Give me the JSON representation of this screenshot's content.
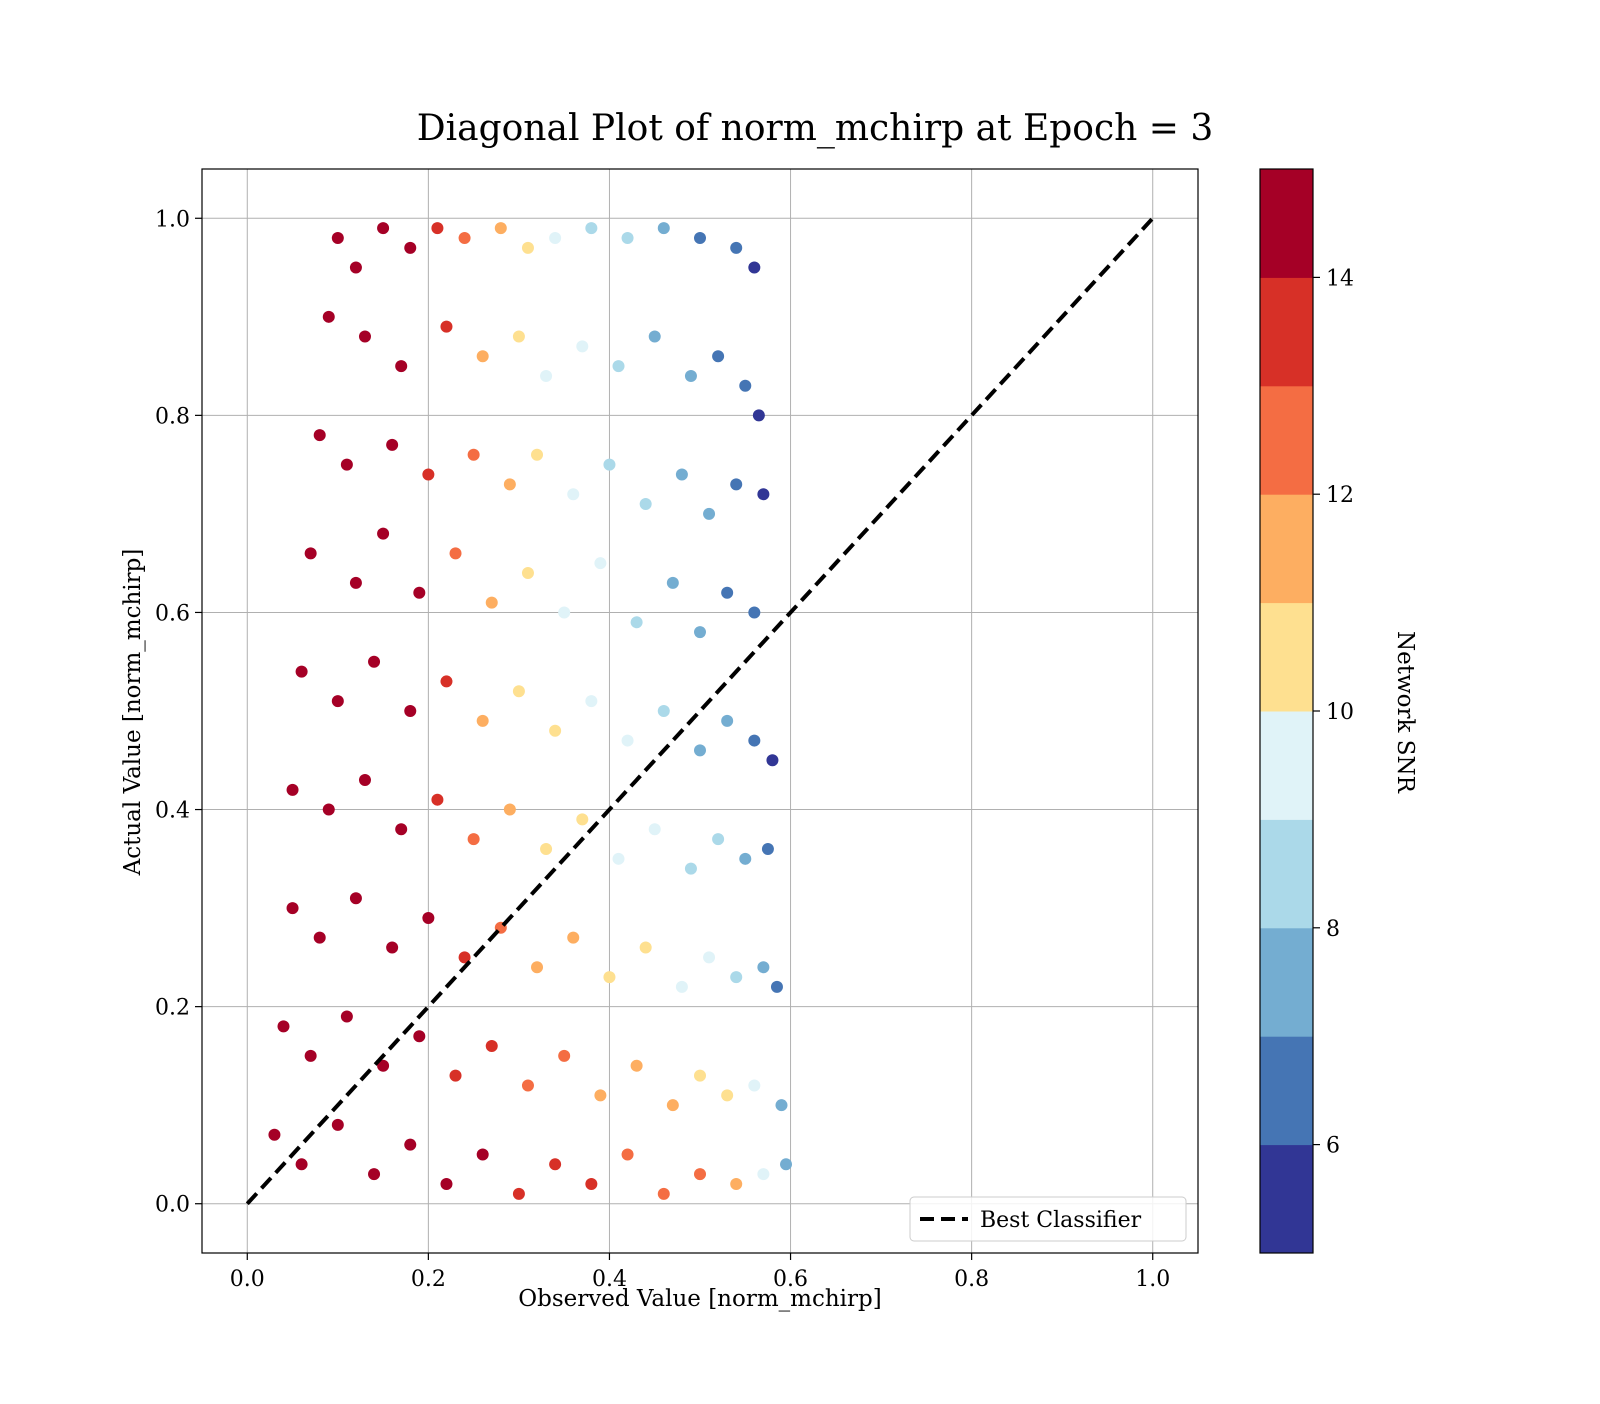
{
  "chart_data": {
    "type": "scatter",
    "title": "Diagonal Plot of norm_mchirp at Epoch = 3",
    "xlabel": "Observed Value [norm_mchirp]",
    "ylabel": "Actual Value [norm_mchirp]",
    "xlim": [
      -0.05,
      1.05
    ],
    "ylim": [
      -0.05,
      1.05
    ],
    "x_ticks": [
      0.0,
      0.2,
      0.4,
      0.6,
      0.8,
      1.0
    ],
    "y_ticks": [
      0.0,
      0.2,
      0.4,
      0.6,
      0.8,
      1.0
    ],
    "x_tick_labels": [
      "0.0",
      "0.2",
      "0.4",
      "0.6",
      "0.8",
      "1.0"
    ],
    "y_tick_labels": [
      "0.0",
      "0.2",
      "0.4",
      "0.6",
      "0.8",
      "1.0"
    ],
    "grid": true,
    "legend": {
      "placement": "lower-right",
      "entries": [
        "Best Classifier"
      ]
    },
    "diagonal_line": {
      "name": "Best Classifier",
      "x": [
        0.0,
        1.0
      ],
      "y": [
        0.0,
        1.0
      ],
      "style": "dashed",
      "color": "#000000"
    },
    "colorbar": {
      "label": "Network SNR",
      "range": [
        5,
        15
      ],
      "ticks": [
        6,
        8,
        10,
        12,
        14
      ],
      "tick_labels": [
        "6",
        "8",
        "10",
        "12",
        "14"
      ],
      "colors": [
        "#313695",
        "#4575b4",
        "#74add1",
        "#abd9e9",
        "#e0f3f8",
        "#fee090",
        "#fdae61",
        "#f46d43",
        "#d73027",
        "#a50026"
      ]
    },
    "series": [
      {
        "name": "",
        "description_points": "scatter points (observed, actual, snr) sampled from image",
        "points": [
          [
            0.1,
            0.98,
            14.8
          ],
          [
            0.12,
            0.95,
            14.9
          ],
          [
            0.15,
            0.99,
            14.7
          ],
          [
            0.18,
            0.97,
            14.6
          ],
          [
            0.21,
            0.99,
            13.5
          ],
          [
            0.24,
            0.98,
            12.0
          ],
          [
            0.28,
            0.99,
            11.0
          ],
          [
            0.31,
            0.97,
            10.2
          ],
          [
            0.34,
            0.98,
            9.4
          ],
          [
            0.38,
            0.99,
            8.6
          ],
          [
            0.42,
            0.98,
            8.0
          ],
          [
            0.46,
            0.99,
            7.5
          ],
          [
            0.5,
            0.98,
            6.8
          ],
          [
            0.54,
            0.97,
            6.5
          ],
          [
            0.56,
            0.95,
            5.8
          ],
          [
            0.09,
            0.9,
            14.9
          ],
          [
            0.13,
            0.88,
            15.0
          ],
          [
            0.17,
            0.85,
            14.4
          ],
          [
            0.22,
            0.89,
            13.2
          ],
          [
            0.26,
            0.86,
            11.8
          ],
          [
            0.3,
            0.88,
            10.8
          ],
          [
            0.33,
            0.84,
            9.6
          ],
          [
            0.37,
            0.87,
            9.0
          ],
          [
            0.41,
            0.85,
            8.4
          ],
          [
            0.45,
            0.88,
            7.8
          ],
          [
            0.49,
            0.84,
            7.2
          ],
          [
            0.52,
            0.86,
            6.6
          ],
          [
            0.55,
            0.83,
            6.2
          ],
          [
            0.565,
            0.8,
            5.6
          ],
          [
            0.08,
            0.78,
            14.8
          ],
          [
            0.11,
            0.75,
            15.0
          ],
          [
            0.16,
            0.77,
            14.6
          ],
          [
            0.2,
            0.74,
            13.8
          ],
          [
            0.25,
            0.76,
            12.2
          ],
          [
            0.29,
            0.73,
            11.0
          ],
          [
            0.32,
            0.76,
            10.0
          ],
          [
            0.36,
            0.72,
            9.2
          ],
          [
            0.4,
            0.75,
            8.8
          ],
          [
            0.44,
            0.71,
            8.1
          ],
          [
            0.48,
            0.74,
            7.6
          ],
          [
            0.51,
            0.7,
            7.0
          ],
          [
            0.54,
            0.73,
            6.4
          ],
          [
            0.57,
            0.72,
            5.9
          ],
          [
            0.07,
            0.66,
            14.9
          ],
          [
            0.12,
            0.63,
            15.0
          ],
          [
            0.15,
            0.68,
            14.7
          ],
          [
            0.19,
            0.62,
            14.0
          ],
          [
            0.23,
            0.66,
            12.8
          ],
          [
            0.27,
            0.61,
            11.5
          ],
          [
            0.31,
            0.64,
            10.5
          ],
          [
            0.35,
            0.6,
            9.8
          ],
          [
            0.39,
            0.65,
            9.0
          ],
          [
            0.43,
            0.59,
            8.5
          ],
          [
            0.47,
            0.63,
            7.9
          ],
          [
            0.5,
            0.58,
            7.3
          ],
          [
            0.53,
            0.62,
            6.9
          ],
          [
            0.56,
            0.6,
            6.0
          ],
          [
            0.06,
            0.54,
            14.8
          ],
          [
            0.1,
            0.51,
            15.0
          ],
          [
            0.14,
            0.55,
            14.9
          ],
          [
            0.18,
            0.5,
            14.2
          ],
          [
            0.22,
            0.53,
            13.0
          ],
          [
            0.26,
            0.49,
            11.9
          ],
          [
            0.3,
            0.52,
            10.9
          ],
          [
            0.34,
            0.48,
            10.1
          ],
          [
            0.38,
            0.51,
            9.5
          ],
          [
            0.42,
            0.47,
            9.0
          ],
          [
            0.46,
            0.5,
            8.4
          ],
          [
            0.5,
            0.46,
            7.9
          ],
          [
            0.53,
            0.49,
            7.2
          ],
          [
            0.56,
            0.47,
            6.3
          ],
          [
            0.58,
            0.45,
            5.7
          ],
          [
            0.05,
            0.42,
            14.7
          ],
          [
            0.09,
            0.4,
            15.0
          ],
          [
            0.13,
            0.43,
            14.9
          ],
          [
            0.17,
            0.38,
            14.5
          ],
          [
            0.21,
            0.41,
            13.4
          ],
          [
            0.25,
            0.37,
            12.4
          ],
          [
            0.29,
            0.4,
            11.5
          ],
          [
            0.33,
            0.36,
            10.8
          ],
          [
            0.37,
            0.39,
            10.0
          ],
          [
            0.41,
            0.35,
            9.6
          ],
          [
            0.45,
            0.38,
            9.1
          ],
          [
            0.49,
            0.34,
            8.8
          ],
          [
            0.52,
            0.37,
            8.2
          ],
          [
            0.55,
            0.35,
            7.4
          ],
          [
            0.575,
            0.36,
            6.2
          ],
          [
            0.05,
            0.3,
            14.8
          ],
          [
            0.08,
            0.27,
            15.0
          ],
          [
            0.12,
            0.31,
            14.9
          ],
          [
            0.16,
            0.26,
            14.8
          ],
          [
            0.2,
            0.29,
            14.0
          ],
          [
            0.24,
            0.25,
            13.0
          ],
          [
            0.28,
            0.28,
            12.3
          ],
          [
            0.32,
            0.24,
            11.7
          ],
          [
            0.36,
            0.27,
            11.0
          ],
          [
            0.4,
            0.23,
            10.6
          ],
          [
            0.44,
            0.26,
            10.1
          ],
          [
            0.48,
            0.22,
            9.8
          ],
          [
            0.51,
            0.25,
            9.2
          ],
          [
            0.54,
            0.23,
            8.5
          ],
          [
            0.57,
            0.24,
            7.4
          ],
          [
            0.585,
            0.22,
            6.0
          ],
          [
            0.04,
            0.18,
            14.7
          ],
          [
            0.07,
            0.15,
            15.0
          ],
          [
            0.11,
            0.19,
            15.0
          ],
          [
            0.15,
            0.14,
            14.9
          ],
          [
            0.19,
            0.17,
            14.5
          ],
          [
            0.23,
            0.13,
            13.8
          ],
          [
            0.27,
            0.16,
            13.2
          ],
          [
            0.31,
            0.12,
            12.7
          ],
          [
            0.35,
            0.15,
            12.1
          ],
          [
            0.39,
            0.11,
            11.8
          ],
          [
            0.43,
            0.14,
            11.4
          ],
          [
            0.47,
            0.1,
            11.0
          ],
          [
            0.5,
            0.13,
            10.6
          ],
          [
            0.53,
            0.11,
            10.1
          ],
          [
            0.56,
            0.12,
            9.0
          ],
          [
            0.59,
            0.1,
            7.0
          ],
          [
            0.03,
            0.07,
            14.6
          ],
          [
            0.06,
            0.04,
            15.0
          ],
          [
            0.1,
            0.08,
            15.0
          ],
          [
            0.14,
            0.03,
            15.0
          ],
          [
            0.18,
            0.06,
            14.9
          ],
          [
            0.22,
            0.02,
            14.7
          ],
          [
            0.26,
            0.05,
            14.3
          ],
          [
            0.3,
            0.01,
            13.9
          ],
          [
            0.34,
            0.04,
            13.6
          ],
          [
            0.38,
            0.02,
            13.2
          ],
          [
            0.42,
            0.05,
            12.9
          ],
          [
            0.46,
            0.01,
            12.6
          ],
          [
            0.5,
            0.03,
            12.1
          ],
          [
            0.54,
            0.02,
            11.5
          ],
          [
            0.57,
            0.03,
            9.8
          ],
          [
            0.595,
            0.04,
            7.5
          ]
        ]
      }
    ]
  }
}
